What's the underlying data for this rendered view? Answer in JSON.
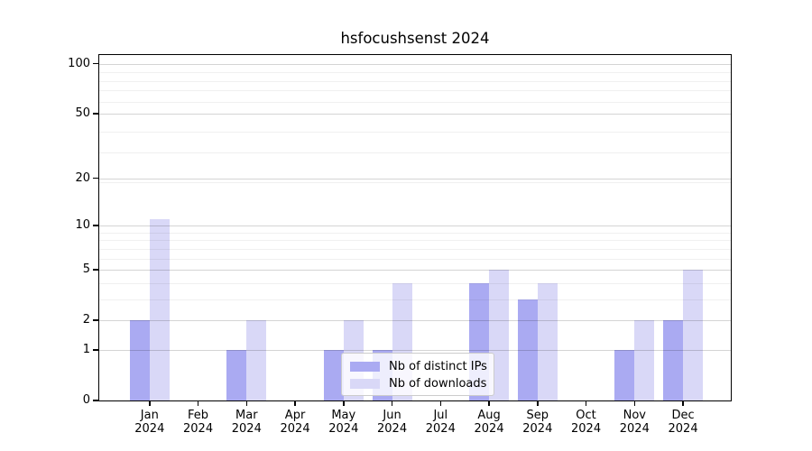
{
  "figure": {
    "title": "hsfocushsenst 2024"
  },
  "chart_data": {
    "type": "bar",
    "title": "hsfocushsenst 2024",
    "categories": [
      "Jan 2024",
      "Feb 2024",
      "Mar 2024",
      "Apr 2024",
      "May 2024",
      "Jun 2024",
      "Jul 2024",
      "Aug 2024",
      "Sep 2024",
      "Oct 2024",
      "Nov 2024",
      "Dec 2024"
    ],
    "series": [
      {
        "name": "Nb of distinct IPs",
        "color": "#aaaaf2",
        "values": [
          2,
          0,
          1,
          0,
          1,
          1,
          0,
          4,
          3,
          0,
          1,
          2
        ]
      },
      {
        "name": "Nb of downloads",
        "color": "#d9d8f7",
        "values": [
          11,
          0,
          2,
          0,
          2,
          4,
          0,
          5,
          4,
          0,
          2,
          5
        ]
      }
    ],
    "xlabel": "",
    "ylabel": "",
    "y_scale": "log(1+y)",
    "y_ticks": [
      100,
      50,
      20,
      10,
      5,
      2,
      1,
      0
    ],
    "y_minor_gridlines": [
      3,
      4,
      6,
      7,
      8,
      9,
      19,
      29,
      39,
      59,
      69,
      79,
      89
    ],
    "ylim": [
      0,
      112
    ],
    "grid": true,
    "legend_position": "lower center"
  }
}
